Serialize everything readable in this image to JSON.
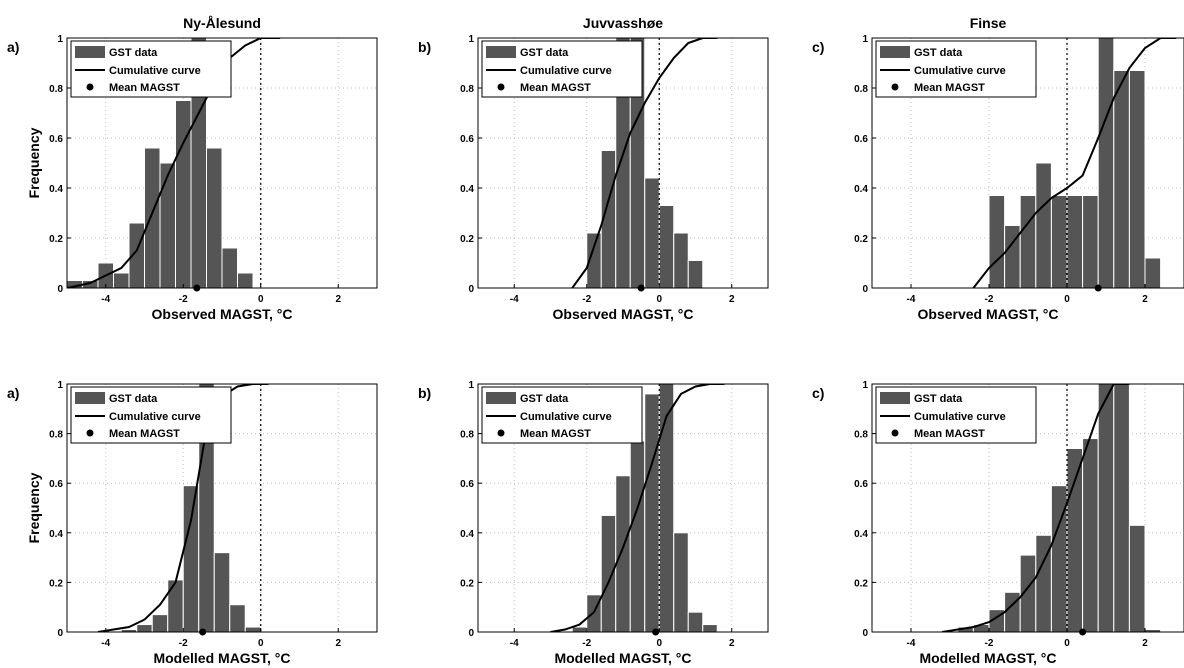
{
  "chart_data": [
    {
      "type": "bar",
      "title": "Ny-Ålesund",
      "panel_label": "a)",
      "xlabel": "Observed MAGST, °C",
      "ylabel": "Frequency",
      "xlim": [
        -5,
        3
      ],
      "ylim": [
        0,
        1
      ],
      "xticks": [
        "-4",
        "-2",
        "0",
        "2"
      ],
      "yticks": [
        "0",
        "0.2",
        "0.4",
        "0.6",
        "0.8",
        "1"
      ],
      "bin_width": 0.4,
      "bins": [
        -4.8,
        -4.4,
        -4.0,
        -3.6,
        -3.2,
        -2.8,
        -2.4,
        -2.0,
        -1.6,
        -1.2,
        -0.8,
        -0.4,
        0.0
      ],
      "values": [
        0.03,
        0.03,
        0.1,
        0.06,
        0.26,
        0.56,
        0.5,
        0.75,
        1.0,
        0.56,
        0.16,
        0.06,
        0.0
      ],
      "cumulative": {
        "x": [
          -5.0,
          -4.4,
          -4.0,
          -3.6,
          -3.2,
          -2.8,
          -2.4,
          -2.0,
          -1.6,
          -1.2,
          -0.8,
          -0.4,
          0.0,
          0.5
        ],
        "y": [
          0.0,
          0.02,
          0.05,
          0.08,
          0.15,
          0.3,
          0.45,
          0.58,
          0.7,
          0.82,
          0.92,
          0.97,
          1.0,
          1.0
        ]
      },
      "mean_magst": -1.65,
      "zero_line": 0,
      "legend": [
        "GST data",
        "Cumulative curve",
        "Mean MAGST"
      ]
    },
    {
      "type": "bar",
      "title": "Juvvasshøe",
      "panel_label": "b)",
      "xlabel": "Observed MAGST, °C",
      "ylabel": "",
      "xlim": [
        -5,
        3
      ],
      "ylim": [
        0,
        1
      ],
      "xticks": [
        "-4",
        "-2",
        "0",
        "2"
      ],
      "yticks": [
        "0",
        "0.2",
        "0.4",
        "0.6",
        "0.8",
        "1"
      ],
      "bin_width": 0.4,
      "bins": [
        -1.8,
        -1.4,
        -1.0,
        -0.6,
        -0.2,
        0.2,
        0.6,
        1.0
      ],
      "values": [
        0.22,
        0.55,
        1.0,
        1.0,
        0.44,
        0.33,
        0.22,
        0.11
      ],
      "cumulative": {
        "x": [
          -2.4,
          -2.0,
          -1.6,
          -1.2,
          -0.8,
          -0.4,
          0.0,
          0.4,
          0.8,
          1.2,
          1.6
        ],
        "y": [
          0.0,
          0.08,
          0.25,
          0.45,
          0.62,
          0.74,
          0.84,
          0.92,
          0.98,
          1.0,
          1.0
        ]
      },
      "mean_magst": -0.5,
      "zero_line": 0,
      "legend": [
        "GST data",
        "Cumulative curve",
        "Mean MAGST"
      ]
    },
    {
      "type": "bar",
      "title": "Finse",
      "panel_label": "c)",
      "xlabel": "Observed MAGST, °C",
      "ylabel": "",
      "xlim": [
        -5,
        3
      ],
      "ylim": [
        0,
        1
      ],
      "xticks": [
        "-4",
        "-2",
        "0",
        "2"
      ],
      "yticks": [
        "0",
        "0.2",
        "0.4",
        "0.6",
        "0.8",
        "1"
      ],
      "bin_width": 0.4,
      "bins": [
        -1.8,
        -1.4,
        -1.0,
        -0.6,
        -0.2,
        0.2,
        0.6,
        1.0,
        1.4,
        1.8,
        2.2,
        2.6
      ],
      "values": [
        0.37,
        0.25,
        0.37,
        0.5,
        0.37,
        0.37,
        0.37,
        1.0,
        0.87,
        0.87,
        0.12,
        0.0
      ],
      "cumulative": {
        "x": [
          -2.4,
          -2.0,
          -1.6,
          -1.2,
          -0.8,
          -0.4,
          0.0,
          0.4,
          0.8,
          1.2,
          1.6,
          2.0,
          2.4,
          2.8
        ],
        "y": [
          0.0,
          0.08,
          0.14,
          0.22,
          0.3,
          0.36,
          0.4,
          0.45,
          0.6,
          0.76,
          0.88,
          0.96,
          1.0,
          1.0
        ]
      },
      "mean_magst": 0.8,
      "zero_line": 0,
      "legend": [
        "GST data",
        "Cumulative curve",
        "Mean MAGST"
      ]
    },
    {
      "type": "bar",
      "title": "",
      "panel_label": "a)",
      "xlabel": "Modelled MAGST, °C",
      "ylabel": "Frequency",
      "xlim": [
        -5,
        3
      ],
      "ylim": [
        0,
        1
      ],
      "xticks": [
        "-4",
        "-2",
        "0",
        "2"
      ],
      "yticks": [
        "0",
        "0.2",
        "0.4",
        "0.6",
        "0.8",
        "1"
      ],
      "bin_width": 0.4,
      "bins": [
        -3.4,
        -3.0,
        -2.6,
        -2.2,
        -1.8,
        -1.4,
        -1.0,
        -0.6,
        -0.2,
        0.2
      ],
      "values": [
        0.01,
        0.03,
        0.07,
        0.21,
        0.59,
        1.0,
        0.32,
        0.11,
        0.02,
        0.0
      ],
      "cumulative": {
        "x": [
          -4.2,
          -3.8,
          -3.4,
          -3.0,
          -2.6,
          -2.2,
          -1.8,
          -1.4,
          -1.0,
          -0.6,
          -0.2,
          0.2
        ],
        "y": [
          0.0,
          0.01,
          0.02,
          0.05,
          0.11,
          0.2,
          0.45,
          0.82,
          0.95,
          0.99,
          1.0,
          1.0
        ]
      },
      "mean_magst": -1.5,
      "zero_line": 0,
      "legend": [
        "GST data",
        "Cumulative curve",
        "Mean MAGST"
      ]
    },
    {
      "type": "bar",
      "title": "",
      "panel_label": "b)",
      "xlabel": "Modelled MAGST, °C",
      "ylabel": "",
      "xlim": [
        -5,
        3
      ],
      "ylim": [
        0,
        1
      ],
      "xticks": [
        "-4",
        "-2",
        "0",
        "2"
      ],
      "yticks": [
        "0",
        "0.2",
        "0.4",
        "0.6",
        "0.8",
        "1"
      ],
      "bin_width": 0.4,
      "bins": [
        -2.6,
        -2.2,
        -1.8,
        -1.4,
        -1.0,
        -0.6,
        -0.2,
        0.2,
        0.6,
        1.0,
        1.4,
        1.8
      ],
      "values": [
        0.0,
        0.02,
        0.15,
        0.47,
        0.63,
        0.77,
        0.96,
        1.0,
        0.4,
        0.08,
        0.03,
        0.0
      ],
      "cumulative": {
        "x": [
          -3.0,
          -2.6,
          -2.2,
          -1.8,
          -1.4,
          -1.0,
          -0.6,
          -0.2,
          0.2,
          0.6,
          1.0,
          1.4,
          1.8
        ],
        "y": [
          0.0,
          0.01,
          0.03,
          0.08,
          0.2,
          0.34,
          0.5,
          0.68,
          0.87,
          0.96,
          0.99,
          1.0,
          1.0
        ]
      },
      "mean_magst": -0.1,
      "zero_line": 0,
      "legend": [
        "GST data",
        "Cumulative curve",
        "Mean MAGST"
      ]
    },
    {
      "type": "bar",
      "title": "",
      "panel_label": "c)",
      "xlabel": "Modelled MAGST, °C",
      "ylabel": "",
      "xlim": [
        -5,
        3
      ],
      "ylim": [
        0,
        1
      ],
      "xticks": [
        "-4",
        "-2",
        "0",
        "2"
      ],
      "yticks": [
        "0",
        "0.2",
        "0.4",
        "0.6",
        "0.8",
        "1"
      ],
      "bin_width": 0.4,
      "bins": [
        -3.0,
        -2.6,
        -2.2,
        -1.8,
        -1.4,
        -1.0,
        -0.6,
        -0.2,
        0.2,
        0.6,
        1.0,
        1.4,
        1.8,
        2.2
      ],
      "values": [
        0.0,
        0.02,
        0.03,
        0.09,
        0.16,
        0.31,
        0.39,
        0.59,
        0.74,
        0.78,
        1.0,
        1.0,
        0.43,
        0.01
      ],
      "cumulative": {
        "x": [
          -3.2,
          -2.8,
          -2.4,
          -2.0,
          -1.6,
          -1.2,
          -0.8,
          -0.4,
          0.0,
          0.4,
          0.8,
          1.2,
          1.6
        ],
        "y": [
          0.0,
          0.01,
          0.02,
          0.04,
          0.08,
          0.14,
          0.22,
          0.35,
          0.52,
          0.7,
          0.88,
          1.0,
          1.0
        ]
      },
      "mean_magst": 0.4,
      "zero_line": 0,
      "legend": [
        "GST data",
        "Cumulative curve",
        "Mean MAGST"
      ]
    }
  ]
}
